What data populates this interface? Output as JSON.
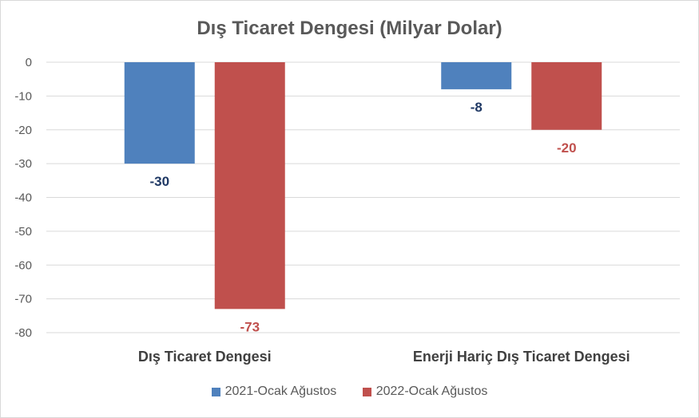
{
  "chart_data": {
    "type": "bar",
    "title": "Dış Ticaret Dengesi (Milyar Dolar)",
    "xlabel": "",
    "ylabel": "",
    "categories": [
      "Dış Ticaret Dengesi",
      "Enerji Hariç Dış Ticaret Dengesi"
    ],
    "series": [
      {
        "name": "2021-Ocak Ağustos",
        "values": [
          -30,
          -8
        ],
        "color": "#4f81bd",
        "label_color": "#1f3864"
      },
      {
        "name": "2022-Ocak Ağustos",
        "values": [
          -73,
          -20
        ],
        "color": "#c0504d",
        "label_color": "#c0504d"
      }
    ],
    "ylim": [
      -80,
      0
    ],
    "yticks": [
      0,
      -10,
      -20,
      -30,
      -40,
      -50,
      -60,
      -70,
      -80
    ],
    "grid": true,
    "legend_position": "bottom"
  }
}
